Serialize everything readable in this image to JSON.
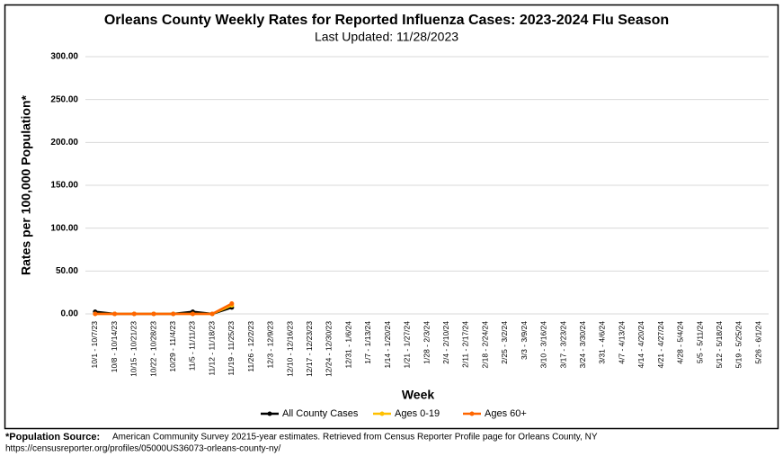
{
  "chart_data": {
    "type": "line",
    "title": "Orleans County Weekly Rates for Reported Influenza Cases: 2023-2024 Flu Season",
    "subtitle": "Last Updated: 11/28/2023",
    "x_label": "Week",
    "y_label": "Rates per 100,000 Population*",
    "footnote_label": "*Population Source:",
    "footnote_text": "American Community Survey 20215-year estimates. Retrieved from Census Reporter Profile page for Orleans County, NY",
    "footnote_url": "https://censusreporter.org/profiles/05000US36073-orleans-county-ny/",
    "categories": [
      "10/1 - 10/7/23",
      "10/8 - 10/14/23",
      "10/15 - 10/21/23",
      "10/22 - 10/28/23",
      "10/29 - 11/4/23",
      "11/5 - 11/11/23",
      "11/12 - 11/18/23",
      "11/19 - 11/25/23",
      "11/26 - 12/2/23",
      "12/3 - 12/9/23",
      "12/10 - 12/16/23",
      "12/17 - 12/23/23",
      "12/24 - 12/30/23",
      "12/31 - 1/6/24",
      "1/7 - 1/13/24",
      "1/14 - 1/20/24",
      "1/21 - 1/27/24",
      "1/28 - 2/3/24",
      "2/4 - 2/10/24",
      "2/11 - 2/17/24",
      "2/18 - 2/24/24",
      "2/25 - 3/2/24",
      "3/3 - 3/9/24",
      "3/10 - 3/16/24",
      "3/17 - 3/23/24",
      "3/24 - 3/30/24",
      "3/31 - 4/6/24",
      "4/7 - 4/13/24",
      "4/14 - 4/20/24",
      "4/21 - 4/27/24",
      "4/28 - 5/4/24",
      "5/5 - 5/11/24",
      "5/12 - 5/18/24",
      "5/19 - 5/25/24",
      "5/26 - 6/1/24"
    ],
    "series": [
      {
        "name": "All County Cases",
        "color": "#000000",
        "values": [
          2.5,
          0,
          0,
          0,
          0,
          2.5,
          0,
          7.5,
          null,
          null,
          null,
          null,
          null,
          null,
          null,
          null,
          null,
          null,
          null,
          null,
          null,
          null,
          null,
          null,
          null,
          null,
          null,
          null,
          null,
          null,
          null,
          null,
          null,
          null,
          null
        ]
      },
      {
        "name": "Ages 0-19",
        "color": "#ffc000",
        "values": [
          0,
          0,
          0,
          0,
          0,
          0,
          0,
          10,
          null,
          null,
          null,
          null,
          null,
          null,
          null,
          null,
          null,
          null,
          null,
          null,
          null,
          null,
          null,
          null,
          null,
          null,
          null,
          null,
          null,
          null,
          null,
          null,
          null,
          null,
          null
        ]
      },
      {
        "name": "Ages 60+",
        "color": "#ff6600",
        "values": [
          0,
          0,
          0,
          0,
          0,
          0,
          0,
          12,
          null,
          null,
          null,
          null,
          null,
          null,
          null,
          null,
          null,
          null,
          null,
          null,
          null,
          null,
          null,
          null,
          null,
          null,
          null,
          null,
          null,
          null,
          null,
          null,
          null,
          null,
          null
        ]
      }
    ],
    "ylim": [
      0,
      300
    ],
    "yticks": [
      {
        "value": 0,
        "label": "0.00"
      },
      {
        "value": 50,
        "label": "50.00"
      },
      {
        "value": 100,
        "label": "100.00"
      },
      {
        "value": 150,
        "label": "150.00"
      },
      {
        "value": 200,
        "label": "200.00"
      },
      {
        "value": 250,
        "label": "250.00"
      },
      {
        "value": 300,
        "label": "300.00"
      }
    ],
    "grid": true,
    "legend": "bottom"
  }
}
